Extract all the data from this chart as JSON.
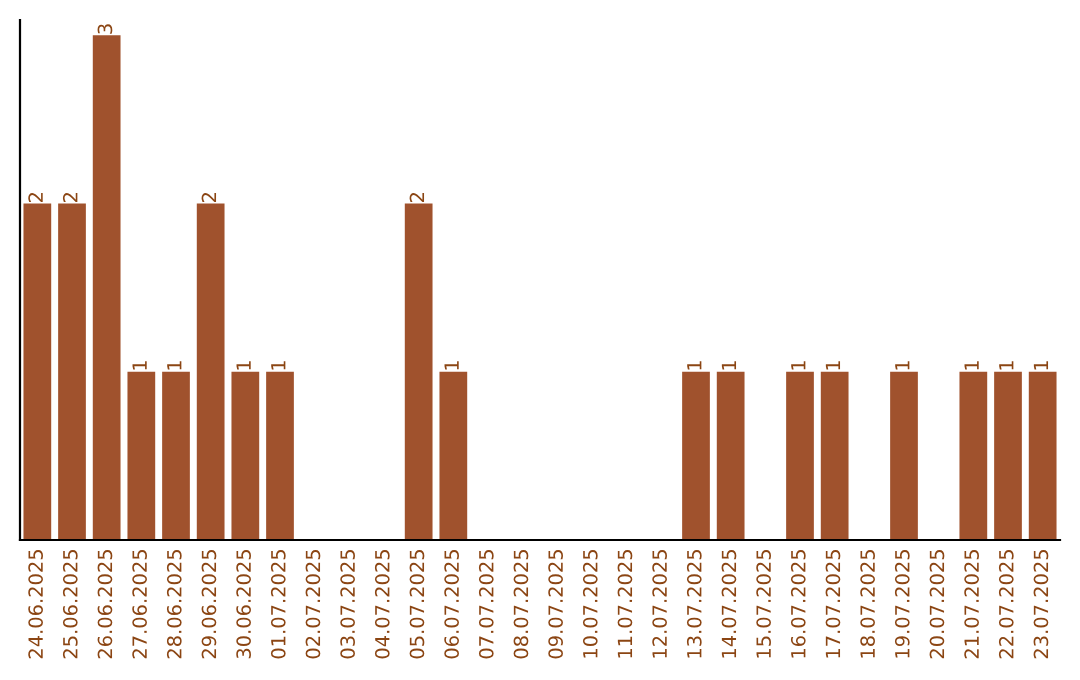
{
  "chart_data": {
    "type": "bar",
    "color": "#a0522d",
    "categories": [
      "24.06.2025",
      "25.06.2025",
      "26.06.2025",
      "27.06.2025",
      "28.06.2025",
      "29.06.2025",
      "30.06.2025",
      "01.07.2025",
      "02.07.2025",
      "03.07.2025",
      "04.07.2025",
      "05.07.2025",
      "06.07.2025",
      "07.07.2025",
      "08.07.2025",
      "09.07.2025",
      "10.07.2025",
      "11.07.2025",
      "12.07.2025",
      "13.07.2025",
      "14.07.2025",
      "15.07.2025",
      "16.07.2025",
      "17.07.2025",
      "18.07.2025",
      "19.07.2025",
      "20.07.2025",
      "21.07.2025",
      "22.07.2025",
      "23.07.2025"
    ],
    "values": [
      2,
      2,
      3,
      1,
      1,
      2,
      1,
      1,
      0,
      0,
      0,
      2,
      1,
      0,
      0,
      0,
      0,
      0,
      0,
      1,
      1,
      0,
      1,
      1,
      0,
      1,
      0,
      1,
      1,
      1
    ],
    "value_labels": [
      "2",
      "2",
      "3",
      "1",
      "1",
      "2",
      "1",
      "1",
      null,
      null,
      null,
      "2",
      "1",
      null,
      null,
      null,
      null,
      null,
      null,
      "1",
      "1",
      null,
      "1",
      "1",
      null,
      "1",
      null,
      "1",
      "1",
      "1"
    ],
    "grid": false,
    "legend": false,
    "tick_labels": "x"
  }
}
